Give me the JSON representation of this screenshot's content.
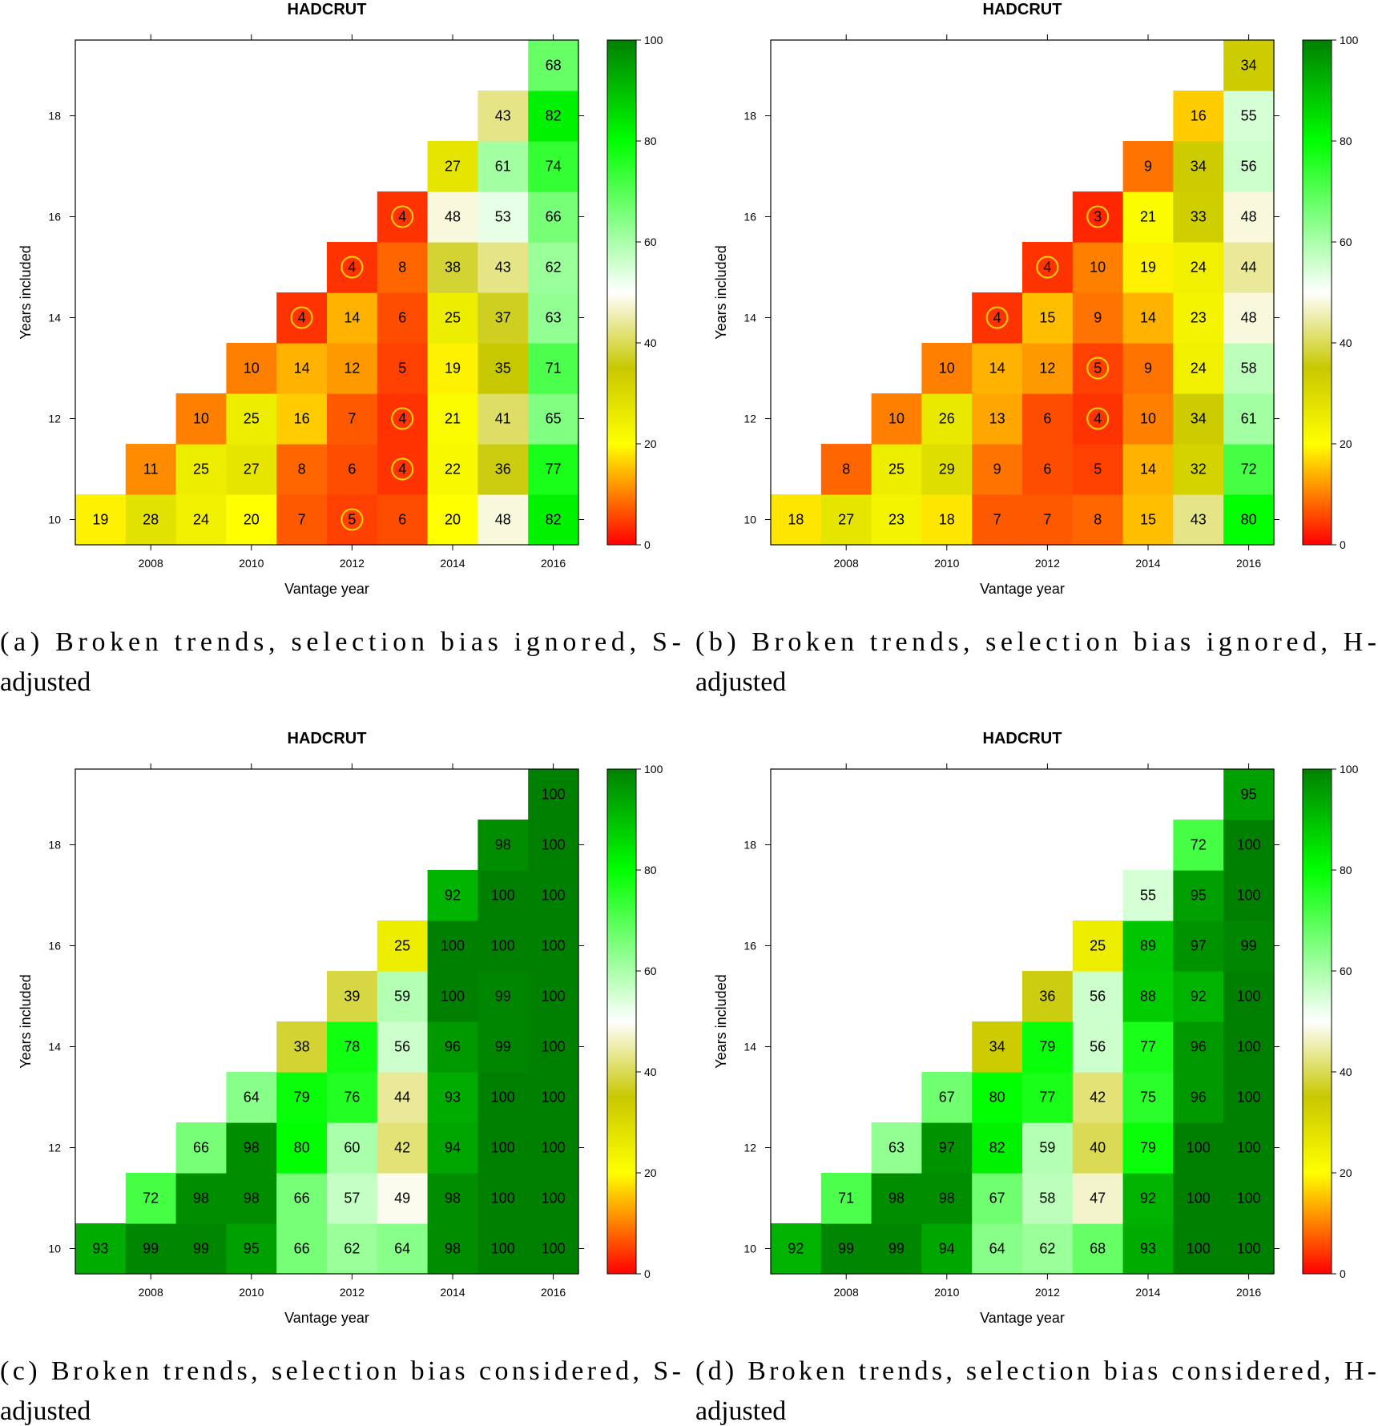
{
  "chart_data": [
    {
      "type": "heatmap",
      "title": "HADCRUT",
      "xlabel": "Vantage year",
      "ylabel": "Years included",
      "x_ticks": [
        2008,
        2010,
        2012,
        2014,
        2016
      ],
      "y_ticks": [
        10,
        12,
        14,
        16,
        18
      ],
      "colorbar_ticks": [
        0,
        20,
        40,
        60,
        80,
        100
      ],
      "zlim": [
        0,
        100
      ],
      "vantage_years": [
        2007,
        2008,
        2009,
        2010,
        2011,
        2012,
        2013,
        2014,
        2015,
        2016
      ],
      "years_included": [
        10,
        11,
        12,
        13,
        14,
        15,
        16,
        17,
        18,
        19
      ],
      "values": [
        [
          19,
          28,
          24,
          20,
          7,
          5,
          6,
          20,
          48,
          82
        ],
        [
          11,
          25,
          27,
          8,
          6,
          4,
          22,
          36,
          77
        ],
        [
          10,
          25,
          16,
          7,
          4,
          21,
          41,
          65
        ],
        [
          10,
          14,
          12,
          5,
          19,
          35,
          71
        ],
        [
          4,
          14,
          6,
          25,
          37,
          63
        ],
        [
          4,
          8,
          38,
          43,
          62
        ],
        [
          4,
          48,
          53,
          66
        ],
        [
          27,
          61,
          74
        ],
        [
          43,
          82
        ],
        [
          68
        ]
      ],
      "circled": [
        [
          10,
          2012
        ],
        [
          11,
          2013
        ],
        [
          12,
          2013
        ],
        [
          14,
          2011
        ],
        [
          15,
          2012
        ],
        [
          16,
          2013
        ]
      ],
      "caption": "(a) Broken trends, selection bias ignored, S-adjusted",
      "caption_lines": [
        "(a) Broken trends, selection bias ignored, S-",
        "adjusted"
      ]
    },
    {
      "type": "heatmap",
      "title": "HADCRUT",
      "xlabel": "Vantage year",
      "ylabel": "Years included",
      "x_ticks": [
        2008,
        2010,
        2012,
        2014,
        2016
      ],
      "y_ticks": [
        10,
        12,
        14,
        16,
        18
      ],
      "colorbar_ticks": [
        0,
        20,
        40,
        60,
        80,
        100
      ],
      "zlim": [
        0,
        100
      ],
      "vantage_years": [
        2007,
        2008,
        2009,
        2010,
        2011,
        2012,
        2013,
        2014,
        2015,
        2016
      ],
      "years_included": [
        10,
        11,
        12,
        13,
        14,
        15,
        16,
        17,
        18,
        19
      ],
      "values": [
        [
          18,
          27,
          23,
          18,
          7,
          7,
          8,
          15,
          43,
          80
        ],
        [
          8,
          25,
          29,
          9,
          6,
          5,
          14,
          32,
          72
        ],
        [
          10,
          26,
          13,
          6,
          4,
          10,
          34,
          61
        ],
        [
          10,
          14,
          12,
          5,
          9,
          24,
          58
        ],
        [
          4,
          15,
          9,
          14,
          23,
          48
        ],
        [
          4,
          10,
          19,
          24,
          44
        ],
        [
          3,
          21,
          33,
          48
        ],
        [
          9,
          34,
          56
        ],
        [
          16,
          55
        ],
        [
          34
        ]
      ],
      "circled": [
        [
          12,
          2013
        ],
        [
          13,
          2013
        ],
        [
          14,
          2011
        ],
        [
          15,
          2012
        ],
        [
          16,
          2013
        ]
      ],
      "caption": "(b) Broken trends, selection bias ignored, H-adjusted",
      "caption_lines": [
        "(b) Broken trends, selection bias ignored, H-",
        "adjusted"
      ]
    },
    {
      "type": "heatmap",
      "title": "HADCRUT",
      "xlabel": "Vantage year",
      "ylabel": "Years included",
      "x_ticks": [
        2008,
        2010,
        2012,
        2014,
        2016
      ],
      "y_ticks": [
        10,
        12,
        14,
        16,
        18
      ],
      "colorbar_ticks": [
        0,
        20,
        40,
        60,
        80,
        100
      ],
      "zlim": [
        0,
        100
      ],
      "vantage_years": [
        2007,
        2008,
        2009,
        2010,
        2011,
        2012,
        2013,
        2014,
        2015,
        2016
      ],
      "years_included": [
        10,
        11,
        12,
        13,
        14,
        15,
        16,
        17,
        18,
        19
      ],
      "values": [
        [
          93,
          99,
          99,
          95,
          66,
          62,
          64,
          98,
          100,
          100
        ],
        [
          72,
          98,
          98,
          66,
          57,
          49,
          98,
          100,
          100
        ],
        [
          66,
          98,
          80,
          60,
          42,
          94,
          100,
          100
        ],
        [
          64,
          79,
          76,
          44,
          93,
          100,
          100
        ],
        [
          38,
          78,
          56,
          96,
          99,
          100
        ],
        [
          39,
          59,
          100,
          99,
          100
        ],
        [
          25,
          100,
          100,
          100
        ],
        [
          92,
          100,
          100
        ],
        [
          98,
          100
        ],
        [
          100
        ]
      ],
      "circled": [],
      "caption": "(c) Broken trends, selection bias considered, S-adjusted",
      "caption_lines": [
        "(c) Broken trends, selection bias considered, S-",
        "adjusted"
      ]
    },
    {
      "type": "heatmap",
      "title": "HADCRUT",
      "xlabel": "Vantage year",
      "ylabel": "Years included",
      "x_ticks": [
        2008,
        2010,
        2012,
        2014,
        2016
      ],
      "y_ticks": [
        10,
        12,
        14,
        16,
        18
      ],
      "colorbar_ticks": [
        0,
        20,
        40,
        60,
        80,
        100
      ],
      "zlim": [
        0,
        100
      ],
      "vantage_years": [
        2007,
        2008,
        2009,
        2010,
        2011,
        2012,
        2013,
        2014,
        2015,
        2016
      ],
      "years_included": [
        10,
        11,
        12,
        13,
        14,
        15,
        16,
        17,
        18,
        19
      ],
      "values": [
        [
          92,
          99,
          99,
          94,
          64,
          62,
          68,
          93,
          100,
          100
        ],
        [
          71,
          98,
          98,
          67,
          58,
          47,
          92,
          100,
          100
        ],
        [
          63,
          97,
          82,
          59,
          40,
          79,
          100,
          100
        ],
        [
          67,
          80,
          77,
          42,
          75,
          96,
          100
        ],
        [
          34,
          79,
          56,
          77,
          96,
          100
        ],
        [
          36,
          56,
          88,
          92,
          100
        ],
        [
          25,
          89,
          97,
          99
        ],
        [
          55,
          95,
          100
        ],
        [
          72,
          100
        ],
        [
          95
        ]
      ],
      "circled": [],
      "caption": "(d) Broken trends, selection bias considered, H-adjusted",
      "caption_lines": [
        "(d) Broken trends, selection bias considered, H-",
        "adjusted"
      ]
    }
  ],
  "colors": {
    "scale": [
      "#ff0000",
      "#ffff00",
      "#c8c800",
      "#ffffff",
      "#00ff00",
      "#008000"
    ],
    "circle": "#ffd700",
    "axis": "#000000"
  }
}
